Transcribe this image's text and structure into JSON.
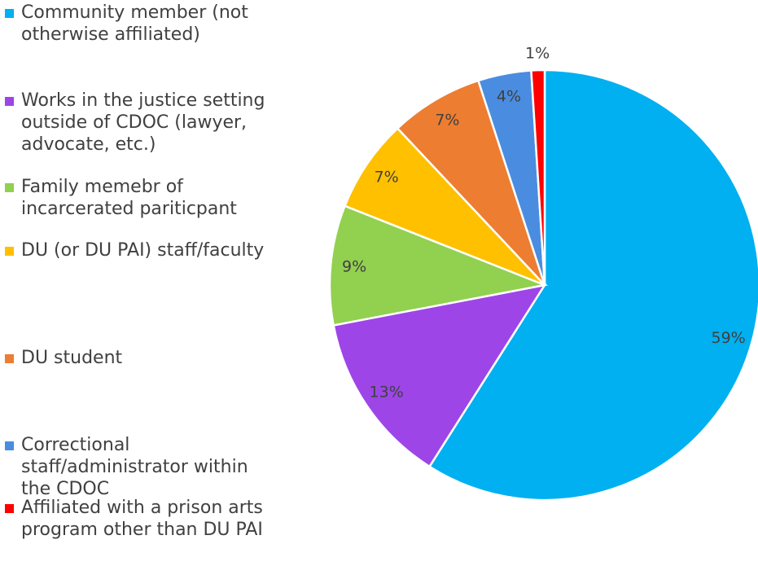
{
  "chart_data": {
    "type": "pie",
    "categories": [
      "Community member (not otherwise affiliated)",
      "Works in the justice setting outside of CDOC (lawyer, advocate, etc.)",
      "Family memebr of incarcerated pariticpant",
      "DU (or DU PAI) staff/faculty",
      "DU student",
      "Correctional staff/administrator within the CDOC",
      "Affiliated with a prison arts program other than DU PAI"
    ],
    "values": [
      59,
      13,
      9,
      7,
      7,
      4,
      1
    ],
    "value_labels": [
      "59%",
      "13%",
      "9%",
      "7%",
      "7%",
      "4%",
      "1%"
    ],
    "colors": [
      "#00b0f0",
      "#9e45e8",
      "#92d050",
      "#ffc000",
      "#ed7d31",
      "#4a8de0",
      "#ff0000"
    ],
    "legend": "left"
  }
}
